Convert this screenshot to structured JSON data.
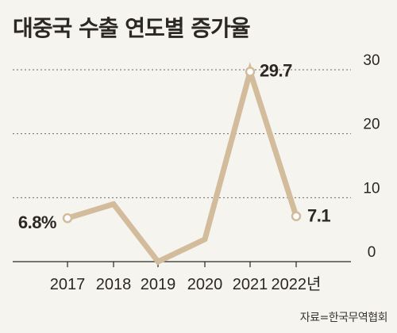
{
  "chart_data": {
    "type": "line",
    "title": "대중국 수출 연도별 증가율",
    "x": [
      "2017",
      "2018",
      "2019",
      "2020",
      "2021",
      "2022년"
    ],
    "series": [
      {
        "values": [
          6.8,
          9.0,
          0.0,
          3.5,
          29.7,
          7.1
        ]
      }
    ],
    "ylim": [
      0,
      30
    ],
    "yticks": [
      "0",
      "10",
      "20",
      "30"
    ],
    "annotations": [
      {
        "x": "2017",
        "text": "6.8%"
      },
      {
        "x": "2021",
        "text": "29.7"
      },
      {
        "x": "2022년",
        "text": "7.1"
      }
    ],
    "marker_points": [
      "2017",
      "2021",
      "2022년"
    ],
    "xlabel": "",
    "ylabel": "",
    "grid": true,
    "y_axis_position": "right",
    "colors": {
      "line": "#d2bc9c",
      "text": "#2b2724",
      "grid": "#6e6a64",
      "background": "#f6f4ee"
    }
  },
  "source": "자료=한국무역협회"
}
